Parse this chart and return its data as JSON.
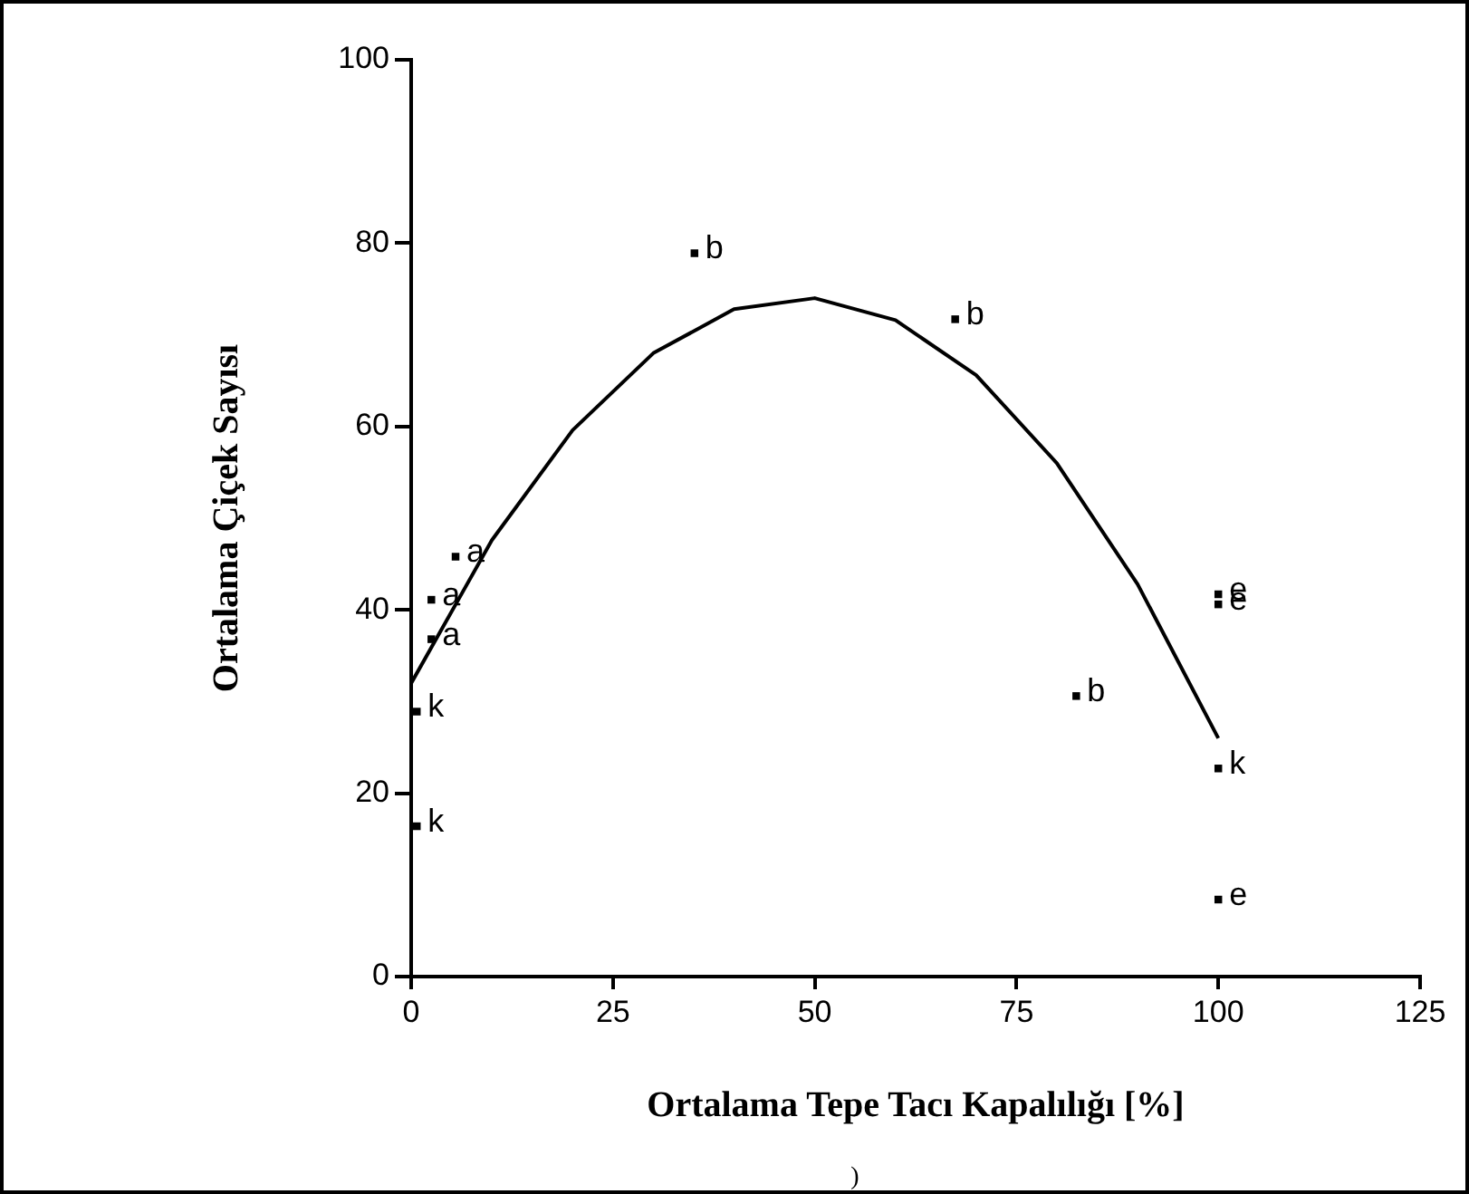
{
  "chart_data": {
    "type": "scatter",
    "xlabel": "Ortalama Tepe Tacı Kapalılığı [%]",
    "ylabel": "Ortalama Çiçek Sayısı",
    "xlim": [
      0,
      125
    ],
    "xticks": [
      0,
      25,
      50,
      75,
      100,
      125
    ],
    "ylim": [
      0,
      100
    ],
    "yticks": [
      0,
      20,
      40,
      60,
      80,
      100
    ],
    "grid": false,
    "legend": false,
    "marker": "square",
    "annotations": [
      ")"
    ],
    "series": [
      {
        "type": "scatter",
        "color": "#000000",
        "x": [
          35.1,
          67.4,
          5.5,
          2.5,
          2.5,
          0.7,
          0.7,
          82.4,
          100,
          100,
          100,
          100
        ],
        "values": [
          78.9,
          71.7,
          45.8,
          41.1,
          36.8,
          28.9,
          16.4,
          30.6,
          41.7,
          40.6,
          22.7,
          8.4
        ],
        "value_labels": [
          "b",
          "b",
          "a",
          "a",
          "a",
          "k",
          "k",
          "b",
          "e",
          "e",
          "k",
          "e"
        ]
      },
      {
        "type": "line",
        "color": "#000000",
        "marker": "none",
        "x": [
          0,
          10,
          20,
          30,
          40,
          50,
          60,
          70,
          80,
          90,
          100
        ],
        "values": [
          32,
          47.6,
          59.6,
          68,
          72.8,
          74,
          71.6,
          65.6,
          56,
          42.8,
          26
        ]
      }
    ]
  }
}
